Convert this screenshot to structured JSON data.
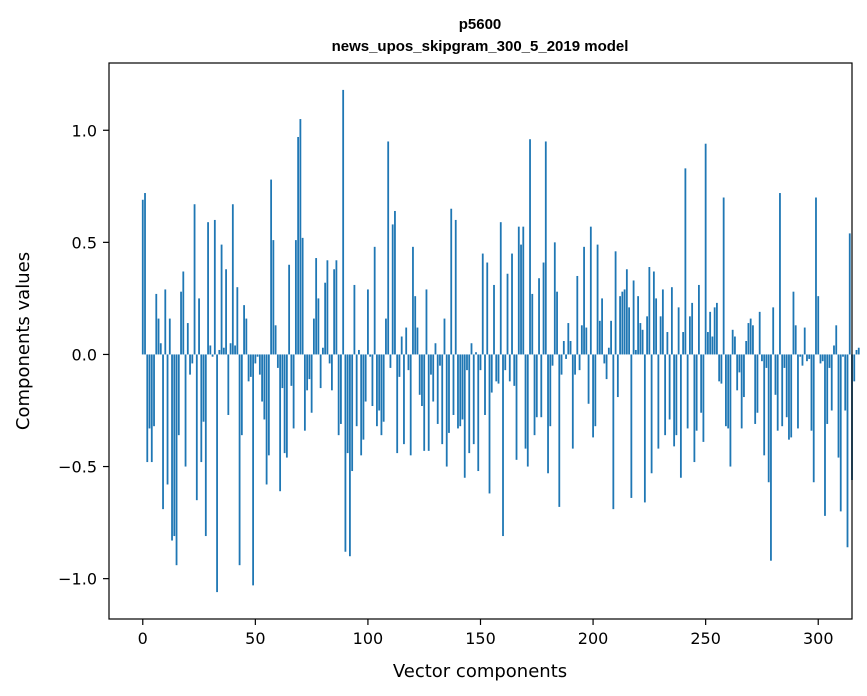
{
  "chart_data": {
    "type": "bar",
    "title_line1": "p5600",
    "title_line2": "news_upos_skipgram_300_5_2019 model",
    "xlabel": "Vector components",
    "ylabel": "Components values",
    "xlim": [
      -15,
      315
    ],
    "ylim": [
      -1.18,
      1.3
    ],
    "xticks": [
      0,
      50,
      100,
      150,
      200,
      250,
      300
    ],
    "yticks": [
      -1.0,
      -0.5,
      0.0,
      0.5,
      1.0
    ],
    "ytick_labels": [
      "−1.0",
      "−0.5",
      "0.0",
      "0.5",
      "1.0"
    ],
    "bar_color": "#1f77b4",
    "values": [
      0.69,
      0.72,
      -0.48,
      -0.33,
      -0.48,
      -0.32,
      0.27,
      0.16,
      0.05,
      -0.69,
      0.29,
      -0.58,
      0.16,
      -0.83,
      -0.81,
      -0.94,
      -0.36,
      0.28,
      0.37,
      -0.5,
      0.14,
      -0.09,
      -0.04,
      0.67,
      -0.65,
      0.25,
      -0.48,
      -0.3,
      -0.81,
      0.59,
      0.04,
      -0.01,
      0.6,
      -1.06,
      0.02,
      0.49,
      0.03,
      0.38,
      -0.27,
      0.05,
      0.67,
      0.04,
      0.3,
      -0.94,
      -0.36,
      0.22,
      0.16,
      -0.12,
      -0.1,
      -1.03,
      -0.04,
      -0.01,
      -0.09,
      -0.21,
      -0.29,
      -0.58,
      -0.45,
      0.78,
      0.51,
      0.13,
      -0.06,
      -0.61,
      -0.15,
      -0.44,
      -0.46,
      0.4,
      -0.14,
      -0.33,
      0.51,
      0.97,
      1.05,
      0.52,
      -0.34,
      -0.16,
      -0.11,
      -0.26,
      0.16,
      0.43,
      0.25,
      -0.15,
      0.03,
      0.32,
      0.42,
      -0.04,
      -0.16,
      0.38,
      0.42,
      -0.36,
      -0.31,
      1.18,
      -0.88,
      -0.44,
      -0.9,
      -0.52,
      0.31,
      -0.32,
      0.02,
      -0.45,
      -0.38,
      -0.21,
      0.29,
      -0.01,
      -0.23,
      0.48,
      -0.32,
      -0.25,
      -0.36,
      -0.3,
      0.16,
      0.95,
      -0.06,
      0.58,
      0.64,
      -0.44,
      -0.1,
      0.08,
      -0.4,
      0.12,
      -0.07,
      -0.45,
      0.48,
      0.26,
      0.12,
      -0.18,
      -0.23,
      -0.43,
      0.29,
      -0.43,
      -0.09,
      -0.21,
      0.05,
      -0.31,
      -0.05,
      -0.4,
      0.16,
      -0.5,
      -0.35,
      0.65,
      -0.27,
      0.6,
      -0.33,
      -0.32,
      -0.29,
      -0.55,
      -0.07,
      -0.44,
      0.05,
      -0.4,
      0.01,
      -0.52,
      -0.07,
      0.45,
      -0.27,
      0.41,
      -0.62,
      -0.17,
      0.31,
      -0.12,
      -0.13,
      0.59,
      -0.81,
      -0.07,
      0.36,
      -0.12,
      0.45,
      -0.14,
      -0.47,
      0.57,
      0.49,
      0.57,
      -0.42,
      -0.5,
      0.96,
      0.27,
      -0.36,
      -0.28,
      0.34,
      -0.28,
      0.41,
      0.95,
      -0.53,
      -0.32,
      -0.05,
      0.5,
      0.28,
      -0.68,
      -0.09,
      0.06,
      -0.02,
      0.14,
      0.06,
      -0.42,
      -0.09,
      0.35,
      -0.07,
      0.13,
      0.48,
      0.12,
      -0.22,
      0.57,
      -0.37,
      -0.32,
      0.49,
      0.15,
      0.25,
      -0.04,
      -0.11,
      0.03,
      0.15,
      -0.69,
      0.46,
      -0.19,
      0.26,
      0.28,
      0.29,
      0.38,
      0.21,
      -0.64,
      0.33,
      0.02,
      0.26,
      0.14,
      0.11,
      -0.66,
      0.17,
      0.39,
      -0.53,
      0.37,
      0.25,
      -0.42,
      0.17,
      0.29,
      -0.36,
      0.1,
      -0.29,
      0.3,
      -0.41,
      -0.36,
      0.21,
      -0.55,
      0.1,
      0.83,
      -0.33,
      0.17,
      0.23,
      -0.48,
      -0.34,
      0.31,
      -0.26,
      -0.39,
      0.94,
      0.1,
      0.19,
      0.08,
      0.21,
      0.23,
      -0.12,
      -0.13,
      0.7,
      -0.32,
      -0.33,
      -0.5,
      0.11,
      0.08,
      -0.16,
      -0.08,
      -0.33,
      -0.19,
      0.06,
      0.14,
      0.16,
      0.13,
      -0.31,
      -0.26,
      0.19,
      -0.03,
      -0.45,
      -0.06,
      -0.57,
      -0.92,
      0.21,
      -0.18,
      -0.34,
      0.72,
      -0.32,
      -0.06,
      -0.28,
      -0.38,
      -0.37,
      0.28,
      0.13,
      -0.33,
      -0.01,
      -0.05,
      0.12,
      -0.03,
      -0.02,
      -0.34,
      -0.57,
      0.7,
      0.26,
      -0.04,
      -0.03,
      -0.72,
      -0.31,
      -0.06,
      -0.25,
      0.04,
      0.13,
      -0.46,
      -0.7,
      -0.01,
      -0.25,
      -0.86,
      0.54,
      -0.56,
      -0.12,
      0.02,
      0.03
    ]
  }
}
